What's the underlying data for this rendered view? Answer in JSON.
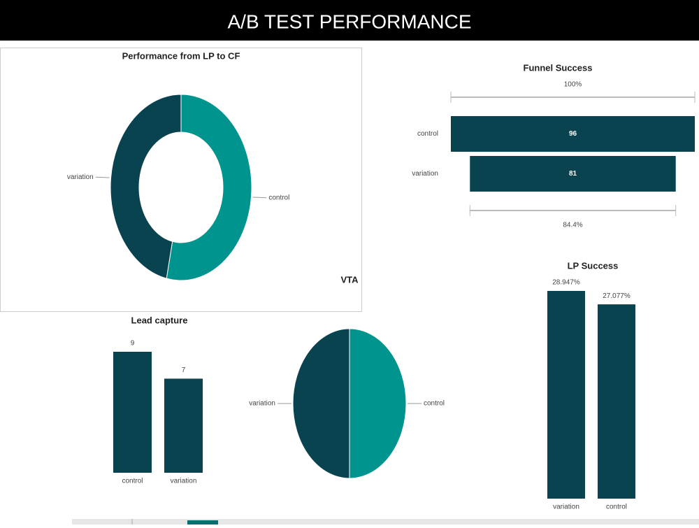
{
  "title": "A/B TEST PERFORMANCE",
  "chart_data": [
    {
      "type": "donut",
      "title": "Performance from LP to CF",
      "annotation": "VTA",
      "categories": [
        "control",
        "variation"
      ],
      "values": [
        53.3,
        46.7
      ],
      "colors": [
        "#00948f",
        "#0a4350"
      ]
    },
    {
      "type": "funnel",
      "title": "Funnel Success",
      "categories": [
        "control",
        "variation"
      ],
      "values": [
        96,
        81
      ],
      "color": "#0a4350",
      "percent_of_first": [
        100,
        84.4
      ],
      "percent_labels": [
        "100%",
        "84.4%"
      ]
    },
    {
      "type": "bar",
      "title": "Lead capture",
      "categories": [
        "control",
        "variation"
      ],
      "values": [
        9,
        7
      ],
      "color": "#0a4350"
    },
    {
      "type": "pie",
      "categories": [
        "control",
        "variation"
      ],
      "values": [
        50,
        50
      ],
      "colors": [
        "#00948f",
        "#0a4350"
      ]
    },
    {
      "type": "bar",
      "title": "LP Success",
      "categories": [
        "variation",
        "control"
      ],
      "values": [
        28.947,
        27.077
      ],
      "value_labels": [
        "28.947%",
        "27.077%"
      ],
      "color": "#0a4350"
    }
  ]
}
